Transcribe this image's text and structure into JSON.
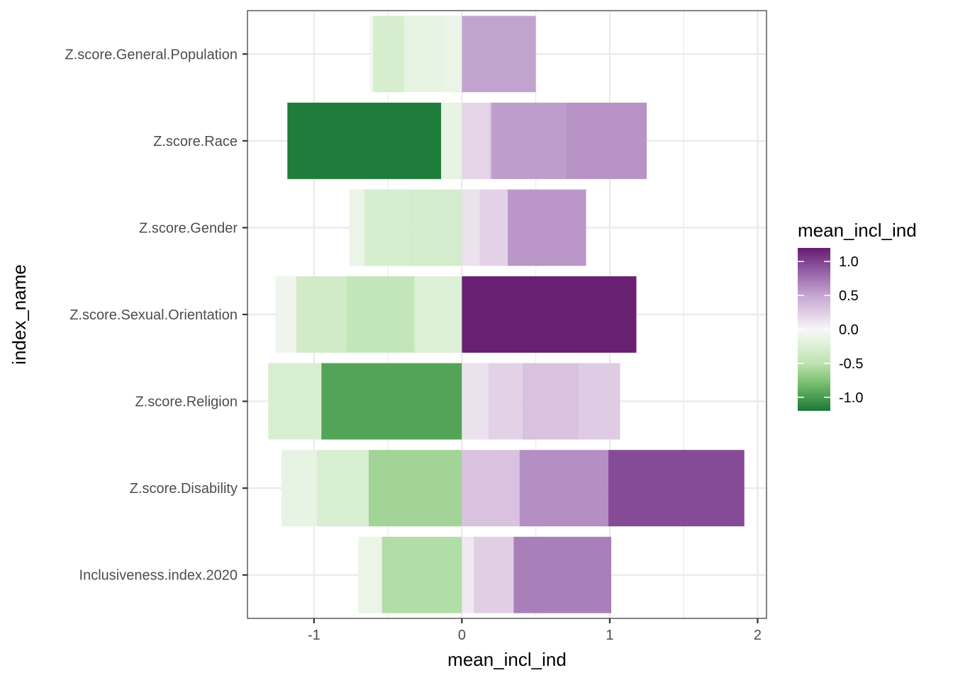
{
  "chart_data": {
    "type": "bar",
    "orientation": "horizontal",
    "stacked": true,
    "xlabel": "mean_incl_ind",
    "ylabel": "index_name",
    "xlim": [
      -1.45,
      2.06
    ],
    "x_ticks": [
      -1,
      0,
      1,
      2
    ],
    "x_tick_labels": [
      "-1",
      "0",
      "1",
      "2"
    ],
    "grid": true,
    "categories": [
      "Z.score.General.Population",
      "Z.score.Race",
      "Z.score.Gender",
      "Z.score.Sexual.Orientation",
      "Z.score.Religion",
      "Z.score.Disability",
      "Inclusiveness.index.2020"
    ],
    "segments": [
      [
        [
          -0.62,
          -0.6,
          -0.06
        ],
        [
          -0.6,
          -0.39,
          -0.3
        ],
        [
          -0.39,
          -0.12,
          -0.15
        ],
        [
          -0.12,
          0,
          -0.12
        ],
        [
          0,
          0.5,
          0.52
        ]
      ],
      [
        [
          -1.18,
          -0.14,
          -1.18
        ],
        [
          -0.14,
          0,
          -0.15
        ],
        [
          0,
          0.19,
          0.2
        ],
        [
          0.19,
          0.2,
          0.35
        ],
        [
          0.2,
          0.7,
          0.55
        ],
        [
          0.7,
          1.25,
          0.6
        ]
      ],
      [
        [
          -0.76,
          -0.66,
          -0.12
        ],
        [
          -0.66,
          -0.36,
          -0.3
        ],
        [
          -0.36,
          0,
          -0.32
        ],
        [
          0,
          0.12,
          0.12
        ],
        [
          0.12,
          0.31,
          0.22
        ],
        [
          0.31,
          0.84,
          0.58
        ]
      ],
      [
        [
          -1.26,
          -1.12,
          -0.08
        ],
        [
          -1.12,
          -0.78,
          -0.34
        ],
        [
          -0.78,
          -0.32,
          -0.45
        ],
        [
          -0.32,
          0,
          -0.25
        ],
        [
          0,
          1.18,
          1.18
        ]
      ],
      [
        [
          -1.31,
          -0.95,
          -0.28
        ],
        [
          -0.95,
          0,
          -0.95
        ],
        [
          0,
          0.18,
          0.12
        ],
        [
          0.18,
          0.41,
          0.22
        ],
        [
          0.41,
          0.79,
          0.32
        ],
        [
          0.79,
          1.07,
          0.26
        ]
      ],
      [
        [
          -1.22,
          -0.98,
          -0.15
        ],
        [
          -0.98,
          -0.63,
          -0.28
        ],
        [
          -0.63,
          0,
          -0.62
        ],
        [
          0,
          0.39,
          0.32
        ],
        [
          0.39,
          0.99,
          0.62
        ],
        [
          0.99,
          1.91,
          0.96
        ]
      ],
      [
        [
          -0.7,
          -0.54,
          -0.12
        ],
        [
          -0.54,
          0,
          -0.55
        ],
        [
          0,
          0.08,
          0.08
        ],
        [
          0.08,
          0.35,
          0.24
        ],
        [
          0.35,
          1.01,
          0.7
        ]
      ]
    ],
    "legend": {
      "title": "mean_incl_ind",
      "placement": "right",
      "range": [
        -1.2,
        1.2
      ],
      "ticks": [
        1.0,
        0.5,
        0.0,
        -0.5,
        -1.0
      ],
      "tick_labels": [
        "1.0",
        "0.5",
        "0.0",
        "-0.5",
        "-1.0"
      ],
      "stops": [
        {
          "v": 1.2,
          "color": "#661c70"
        },
        {
          "v": 0.9,
          "color": "#8d57a0"
        },
        {
          "v": 0.5,
          "color": "#c5a7d2"
        },
        {
          "v": 0.2,
          "color": "#e5d4e8"
        },
        {
          "v": 0.0,
          "color": "#f7f7f7"
        },
        {
          "v": -0.2,
          "color": "#e2f2dc"
        },
        {
          "v": -0.5,
          "color": "#bde3b2"
        },
        {
          "v": -0.8,
          "color": "#76be6c"
        },
        {
          "v": -1.2,
          "color": "#1b7837"
        }
      ]
    }
  }
}
